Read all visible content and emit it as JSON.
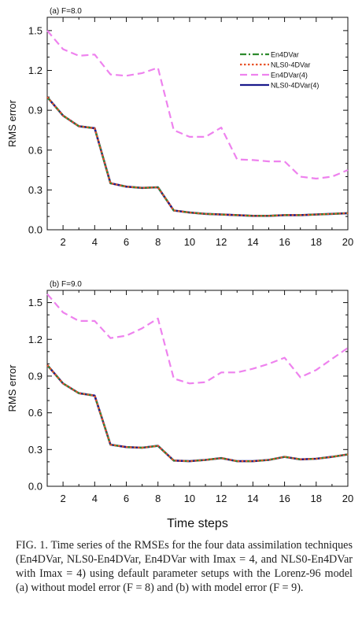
{
  "chart_data": [
    {
      "type": "line",
      "panel_label": "(a) F=8.0",
      "ylabel": "RMS error",
      "xlabel": "",
      "xlim": [
        1,
        20
      ],
      "ylim": [
        0,
        1.6
      ],
      "xticks": [
        2,
        4,
        6,
        8,
        10,
        12,
        14,
        16,
        18,
        20
      ],
      "yticks": [
        "0.0",
        "0.3",
        "0.6",
        "0.9",
        "1.2",
        "1.5"
      ],
      "legend_position": "top-right",
      "x": [
        1,
        2,
        3,
        4,
        5,
        6,
        7,
        8,
        9,
        10,
        11,
        12,
        13,
        14,
        15,
        16,
        17,
        18,
        19,
        20
      ],
      "series": [
        {
          "name": "En4DVar",
          "color": "#2e8b2e",
          "dash": "dashdot",
          "values": [
            1.0,
            0.86,
            0.78,
            0.765,
            0.35,
            0.325,
            0.315,
            0.32,
            0.145,
            0.13,
            0.12,
            0.115,
            0.11,
            0.105,
            0.105,
            0.11,
            0.11,
            0.115,
            0.12,
            0.125
          ]
        },
        {
          "name": "NLS0-4DVar",
          "color": "#e8532a",
          "dash": "dotted",
          "values": [
            1.0,
            0.86,
            0.78,
            0.765,
            0.35,
            0.325,
            0.315,
            0.32,
            0.145,
            0.13,
            0.12,
            0.115,
            0.11,
            0.105,
            0.105,
            0.11,
            0.11,
            0.115,
            0.12,
            0.125
          ]
        },
        {
          "name": "En4DVar(4)",
          "color": "#ee82ee",
          "dash": "dashed",
          "values": [
            1.5,
            1.36,
            1.31,
            1.32,
            1.17,
            1.16,
            1.18,
            1.22,
            0.75,
            0.7,
            0.7,
            0.77,
            0.53,
            0.525,
            0.515,
            0.515,
            0.4,
            0.385,
            0.4,
            0.45
          ]
        },
        {
          "name": "NLS0-4DVar(4)",
          "color": "#1a1a8c",
          "dash": "solid",
          "values": [
            1.0,
            0.86,
            0.78,
            0.765,
            0.35,
            0.325,
            0.315,
            0.32,
            0.145,
            0.13,
            0.12,
            0.115,
            0.11,
            0.105,
            0.105,
            0.11,
            0.11,
            0.115,
            0.12,
            0.125
          ]
        }
      ]
    },
    {
      "type": "line",
      "panel_label": "(b) F=9.0",
      "ylabel": "RMS error",
      "xlabel": "Time steps",
      "xlim": [
        1,
        20
      ],
      "ylim": [
        0,
        1.6
      ],
      "xticks": [
        2,
        4,
        6,
        8,
        10,
        12,
        14,
        16,
        18,
        20
      ],
      "yticks": [
        "0.0",
        "0.3",
        "0.6",
        "0.9",
        "1.2",
        "1.5"
      ],
      "x": [
        1,
        2,
        3,
        4,
        5,
        6,
        7,
        8,
        9,
        10,
        11,
        12,
        13,
        14,
        15,
        16,
        17,
        18,
        19,
        20
      ],
      "series": [
        {
          "name": "En4DVar",
          "color": "#2e8b2e",
          "dash": "dashdot",
          "values": [
            0.99,
            0.84,
            0.76,
            0.74,
            0.34,
            0.32,
            0.315,
            0.33,
            0.21,
            0.205,
            0.215,
            0.23,
            0.205,
            0.205,
            0.215,
            0.24,
            0.22,
            0.225,
            0.24,
            0.26
          ]
        },
        {
          "name": "NLS0-4DVar",
          "color": "#e8532a",
          "dash": "dotted",
          "values": [
            0.99,
            0.84,
            0.76,
            0.74,
            0.34,
            0.32,
            0.315,
            0.33,
            0.21,
            0.205,
            0.215,
            0.23,
            0.205,
            0.205,
            0.215,
            0.24,
            0.22,
            0.225,
            0.24,
            0.26
          ]
        },
        {
          "name": "En4DVar(4)",
          "color": "#ee82ee",
          "dash": "dashed",
          "values": [
            1.57,
            1.42,
            1.35,
            1.35,
            1.21,
            1.23,
            1.29,
            1.37,
            0.88,
            0.84,
            0.85,
            0.93,
            0.93,
            0.96,
            1.0,
            1.05,
            0.89,
            0.95,
            1.04,
            1.13
          ]
        },
        {
          "name": "NLS0-4DVar(4)",
          "color": "#1a1a8c",
          "dash": "solid",
          "values": [
            0.99,
            0.84,
            0.76,
            0.74,
            0.34,
            0.32,
            0.315,
            0.33,
            0.21,
            0.205,
            0.215,
            0.23,
            0.205,
            0.205,
            0.215,
            0.24,
            0.22,
            0.225,
            0.24,
            0.26
          ]
        }
      ]
    }
  ],
  "caption": {
    "fig_label": "FIG. 1.",
    "text": "Time series of the RMSEs for the four data assimilation techniques (En4DVar, NLS0-En4DVar, En4DVar with Imax = 4, and NLS0-En4DVar with Imax = 4) using default parameter setups with the Lorenz-96 model (a) without model error (F = 8) and (b) with model error (F = 9)."
  }
}
